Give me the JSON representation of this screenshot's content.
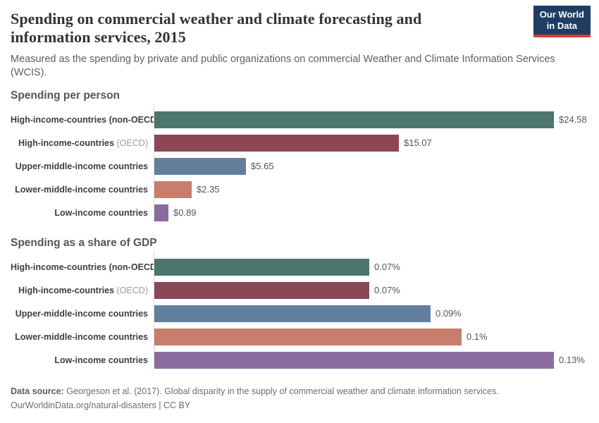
{
  "header": {
    "title": "Spending on commercial weather and climate forecasting and information services, 2015",
    "subtitle": "Measured as the spending by private and public organizations on commercial Weather and Climate Information Services (WCIS).",
    "logo": {
      "line1": "Our World",
      "line2": "in Data",
      "bg_color": "#1d3d63",
      "accent_color": "#d73c32"
    }
  },
  "chart_data": [
    {
      "type": "bar",
      "orientation": "horizontal",
      "title": "Spending per person",
      "categories": [
        {
          "label": "High-income-countries (non-OECD)"
        },
        {
          "label": "High-income-countries",
          "muted_suffix": "(OECD)"
        },
        {
          "label": "Upper-middle-income countries"
        },
        {
          "label": "Lower-middle-income countries"
        },
        {
          "label": "Low-income countries"
        }
      ],
      "values": [
        24.58,
        15.07,
        5.65,
        2.35,
        0.89
      ],
      "value_labels": [
        "$24.58",
        "$15.07",
        "$5.65",
        "$2.35",
        "$0.89"
      ],
      "colors": [
        "#4b756d",
        "#8d4653",
        "#62809e",
        "#c77e6a",
        "#8a6c9e"
      ],
      "xlim": [
        0,
        24.58
      ],
      "grid": false,
      "legend": "none"
    },
    {
      "type": "bar",
      "orientation": "horizontal",
      "title": "Spending as a share of GDP",
      "categories": [
        {
          "label": "High-income-countries (non-OECD)"
        },
        {
          "label": "High-income-countries",
          "muted_suffix": "(OECD)"
        },
        {
          "label": "Upper-middle-income countries"
        },
        {
          "label": "Lower-middle-income countries"
        },
        {
          "label": "Low-income countries"
        }
      ],
      "values": [
        0.07,
        0.07,
        0.09,
        0.1,
        0.13
      ],
      "value_labels": [
        "0.07%",
        "0.07%",
        "0.09%",
        "0.1%",
        "0.13%"
      ],
      "colors": [
        "#4b756d",
        "#8d4653",
        "#62809e",
        "#c77e6a",
        "#8a6c9e"
      ],
      "xlim": [
        0,
        0.13
      ],
      "grid": false,
      "legend": "none"
    }
  ],
  "footer": {
    "source_label": "Data source:",
    "source_text": "Georgeson et al. (2017). Global disparity in the supply of commercial weather and climate information services.",
    "license_line": "OurWorldinData.org/natural-disasters | CC BY"
  }
}
